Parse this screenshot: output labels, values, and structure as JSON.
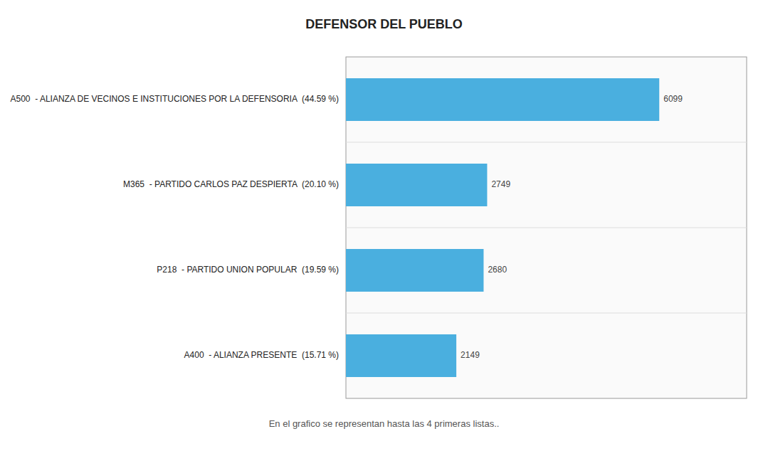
{
  "chart_data": {
    "type": "bar",
    "orientation": "horizontal",
    "title": "DEFENSOR DEL PUEBLO",
    "categories": [
      "A500  - ALIANZA DE VECINOS E INSTITUCIONES POR LA DEFENSORIA  (44.59 %)",
      "M365  - PARTIDO CARLOS PAZ DESPIERTA  (20.10 %)",
      "P218  - PARTIDO UNION POPULAR  (19.59 %)",
      "A400  - ALIANZA PRESENTE  (15.71 %)"
    ],
    "values": [
      6099,
      2749,
      2680,
      2149
    ],
    "color": "#4AAFDF",
    "xlim": [
      0,
      7800
    ],
    "tick_labels": false,
    "data_labels": true,
    "annotations": [
      "En el grafico se representan hasta las 4 primeras listas.."
    ]
  }
}
